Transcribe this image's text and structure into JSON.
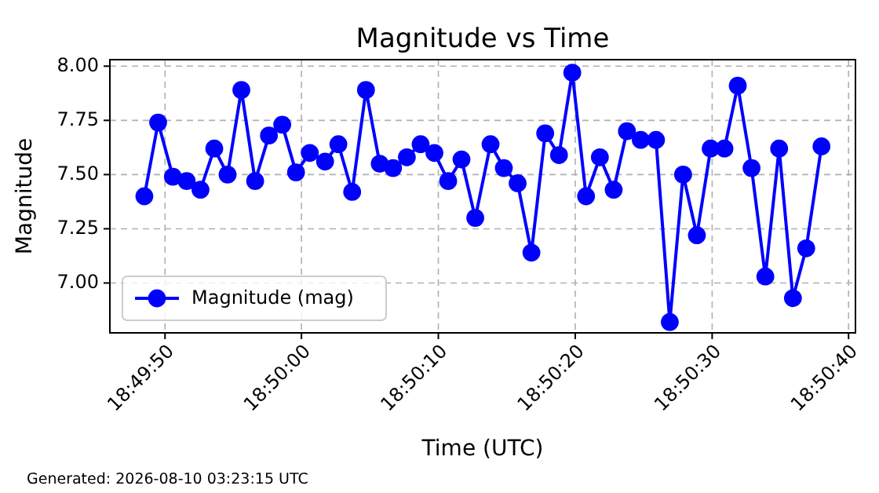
{
  "chart_data": {
    "type": "line",
    "title": "Magnitude vs Time",
    "xlabel": "Time (UTC)",
    "ylabel": "Magnitude",
    "x": [
      18.83014,
      18.83042,
      18.83072,
      18.831,
      18.83128,
      18.83156,
      18.83183,
      18.83211,
      18.83239,
      18.83267,
      18.83294,
      18.83322,
      18.8335,
      18.83381,
      18.83408,
      18.83436,
      18.83464,
      18.83492,
      18.83519,
      18.83547,
      18.83575,
      18.83603,
      18.83631,
      18.83658,
      18.83686,
      18.83717,
      18.83744,
      18.83772,
      18.838,
      18.83828,
      18.83856,
      18.83883,
      18.83911,
      18.83939,
      18.83967,
      18.83994,
      18.84022,
      18.84053,
      18.84081,
      18.84108,
      18.84136,
      18.84164,
      18.84192,
      18.84219,
      18.84247,
      18.84275,
      18.84303,
      18.84331,
      18.84358,
      18.84389
    ],
    "series": [
      {
        "name": "Magnitude (mag)",
        "color": "#0000ff",
        "values": [
          7.4,
          7.74,
          7.49,
          7.47,
          7.43,
          7.62,
          7.5,
          7.89,
          7.47,
          7.68,
          7.73,
          7.51,
          7.6,
          7.56,
          7.64,
          7.42,
          7.89,
          7.55,
          7.53,
          7.58,
          7.64,
          7.6,
          7.47,
          7.57,
          7.3,
          7.64,
          7.53,
          7.46,
          7.14,
          7.69,
          7.59,
          7.97,
          7.4,
          7.58,
          7.43,
          7.7,
          7.66,
          7.66,
          6.82,
          7.5,
          7.22,
          7.62,
          7.62,
          7.91,
          7.53,
          7.03,
          7.62,
          6.93,
          7.16,
          7.63
        ]
      }
    ],
    "xlim": [
      18.82944,
      18.84458
    ],
    "xticks": [
      {
        "value": 18.83056,
        "label": "18:49:50"
      },
      {
        "value": 18.83333,
        "label": "18:50:00"
      },
      {
        "value": 18.83611,
        "label": "18:50:10"
      },
      {
        "value": 18.83889,
        "label": "18:50:20"
      },
      {
        "value": 18.84167,
        "label": "18:50:30"
      },
      {
        "value": 18.84444,
        "label": "18:50:40"
      }
    ],
    "ylim": [
      6.77,
      8.03
    ],
    "yticks": [
      {
        "value": 7,
        "label": "7.00"
      },
      {
        "value": 7.25,
        "label": "7.25"
      },
      {
        "value": 7.5,
        "label": "7.50"
      },
      {
        "value": 7.75,
        "label": "7.75"
      },
      {
        "value": 8,
        "label": "8.00"
      }
    ],
    "grid": true,
    "legend": "bottom left",
    "marker": "circle",
    "line_style": "solid",
    "annotations": [
      "Generated: 2026-08-10 03:23:15 UTC"
    ]
  }
}
